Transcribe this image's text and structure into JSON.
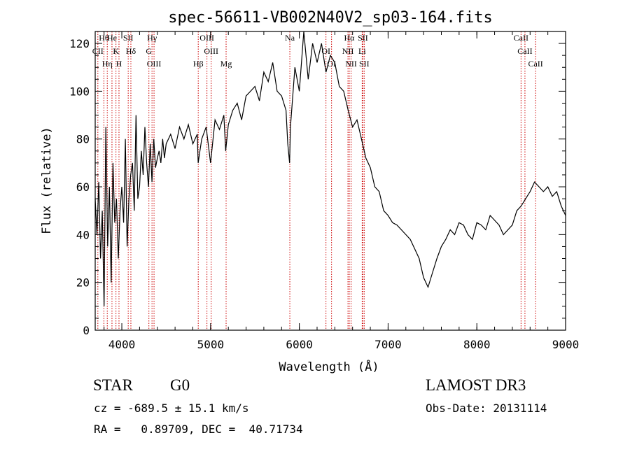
{
  "chart_data": {
    "type": "line",
    "title": "spec-56611-VB002N40V2_sp03-164.fits",
    "xlabel": "Wavelength (Å)",
    "ylabel": "Flux (relative)",
    "xlim": [
      3700,
      9000
    ],
    "ylim": [
      0,
      125
    ],
    "x_ticks": [
      4000,
      5000,
      6000,
      7000,
      8000,
      9000
    ],
    "y_ticks": [
      0,
      20,
      40,
      60,
      80,
      100,
      120
    ],
    "grid": false,
    "series": [
      {
        "name": "flux",
        "x": [
          3700,
          3720,
          3740,
          3760,
          3780,
          3800,
          3820,
          3840,
          3860,
          3880,
          3900,
          3920,
          3940,
          3960,
          3980,
          4000,
          4020,
          4040,
          4060,
          4080,
          4100,
          4120,
          4140,
          4160,
          4180,
          4200,
          4220,
          4240,
          4260,
          4280,
          4300,
          4320,
          4340,
          4360,
          4380,
          4400,
          4420,
          4440,
          4460,
          4480,
          4500,
          4550,
          4600,
          4650,
          4700,
          4750,
          4800,
          4850,
          4860,
          4880,
          4900,
          4950,
          5000,
          5050,
          5100,
          5150,
          5170,
          5200,
          5250,
          5300,
          5350,
          5400,
          5450,
          5500,
          5550,
          5600,
          5650,
          5700,
          5750,
          5800,
          5850,
          5870,
          5890,
          5900,
          5950,
          6000,
          6050,
          6100,
          6150,
          6200,
          6250,
          6300,
          6350,
          6400,
          6450,
          6500,
          6550,
          6600,
          6650,
          6700,
          6750,
          6800,
          6850,
          6900,
          6950,
          7000,
          7050,
          7100,
          7150,
          7200,
          7250,
          7300,
          7350,
          7400,
          7450,
          7500,
          7550,
          7600,
          7650,
          7700,
          7750,
          7800,
          7850,
          7900,
          7950,
          8000,
          8050,
          8100,
          8150,
          8200,
          8250,
          8300,
          8350,
          8400,
          8450,
          8500,
          8550,
          8600,
          8650,
          8700,
          8750,
          8800,
          8850,
          8900,
          8950,
          9000
        ],
        "y": [
          55,
          40,
          62,
          30,
          50,
          10,
          85,
          35,
          60,
          20,
          70,
          45,
          55,
          30,
          50,
          60,
          45,
          80,
          35,
          55,
          65,
          70,
          50,
          90,
          55,
          60,
          75,
          65,
          85,
          70,
          60,
          78,
          62,
          80,
          68,
          72,
          75,
          70,
          80,
          72,
          78,
          82,
          76,
          85,
          80,
          86,
          78,
          82,
          70,
          75,
          80,
          85,
          70,
          88,
          84,
          90,
          75,
          86,
          92,
          95,
          88,
          98,
          100,
          102,
          96,
          108,
          104,
          112,
          100,
          98,
          92,
          78,
          70,
          85,
          110,
          100,
          125,
          105,
          120,
          112,
          120,
          108,
          115,
          112,
          102,
          100,
          92,
          85,
          88,
          80,
          72,
          68,
          60,
          58,
          50,
          48,
          45,
          44,
          42,
          40,
          38,
          34,
          30,
          22,
          18,
          24,
          30,
          35,
          38,
          42,
          40,
          45,
          44,
          40,
          38,
          45,
          44,
          42,
          48,
          46,
          44,
          40,
          42,
          44,
          50,
          52,
          55,
          58,
          62,
          60,
          58,
          60,
          56,
          58,
          52,
          48
        ]
      }
    ],
    "line_markers": [
      {
        "label": "Hθ",
        "wavelength": 3798
      },
      {
        "label": "CII",
        "wavelength": 3730
      },
      {
        "label": "Hη",
        "wavelength": 3836
      },
      {
        "label": "He",
        "wavelength": 3889
      },
      {
        "label": "K",
        "wavelength": 3934
      },
      {
        "label": "H",
        "wavelength": 3968
      },
      {
        "label": "SII",
        "wavelength": 4072
      },
      {
        "label": "Hδ",
        "wavelength": 4102
      },
      {
        "label": "OIII",
        "wavelength": 4363
      },
      {
        "label": "Hγ",
        "wavelength": 4340
      },
      {
        "label": "G",
        "wavelength": 4305
      },
      {
        "label": "Hβ",
        "wavelength": 4861
      },
      {
        "label": "OIII",
        "wavelength": 4959
      },
      {
        "label": "OIII",
        "wavelength": 5007
      },
      {
        "label": "Mg",
        "wavelength": 5175
      },
      {
        "label": "Na",
        "wavelength": 5893
      },
      {
        "label": "OI",
        "wavelength": 6300
      },
      {
        "label": "OI",
        "wavelength": 6363
      },
      {
        "label": "Hα",
        "wavelength": 6563
      },
      {
        "label": "NII",
        "wavelength": 6548
      },
      {
        "label": "NII",
        "wavelength": 6583
      },
      {
        "label": "SII",
        "wavelength": 6716
      },
      {
        "label": "Li",
        "wavelength": 6708
      },
      {
        "label": "SII",
        "wavelength": 6731
      },
      {
        "label": "CaII",
        "wavelength": 8498
      },
      {
        "label": "CaII",
        "wavelength": 8542
      },
      {
        "label": "CaII",
        "wavelength": 8662
      }
    ]
  },
  "info": {
    "object_class": "STAR",
    "subclass": "G0",
    "survey": "LAMOST DR3",
    "cz_line": "cz = -689.5 ± 15.1 km/s",
    "obs_date_line": "Obs-Date: 20131114",
    "coords_line": "RA =   0.89709, DEC =  40.71734"
  }
}
